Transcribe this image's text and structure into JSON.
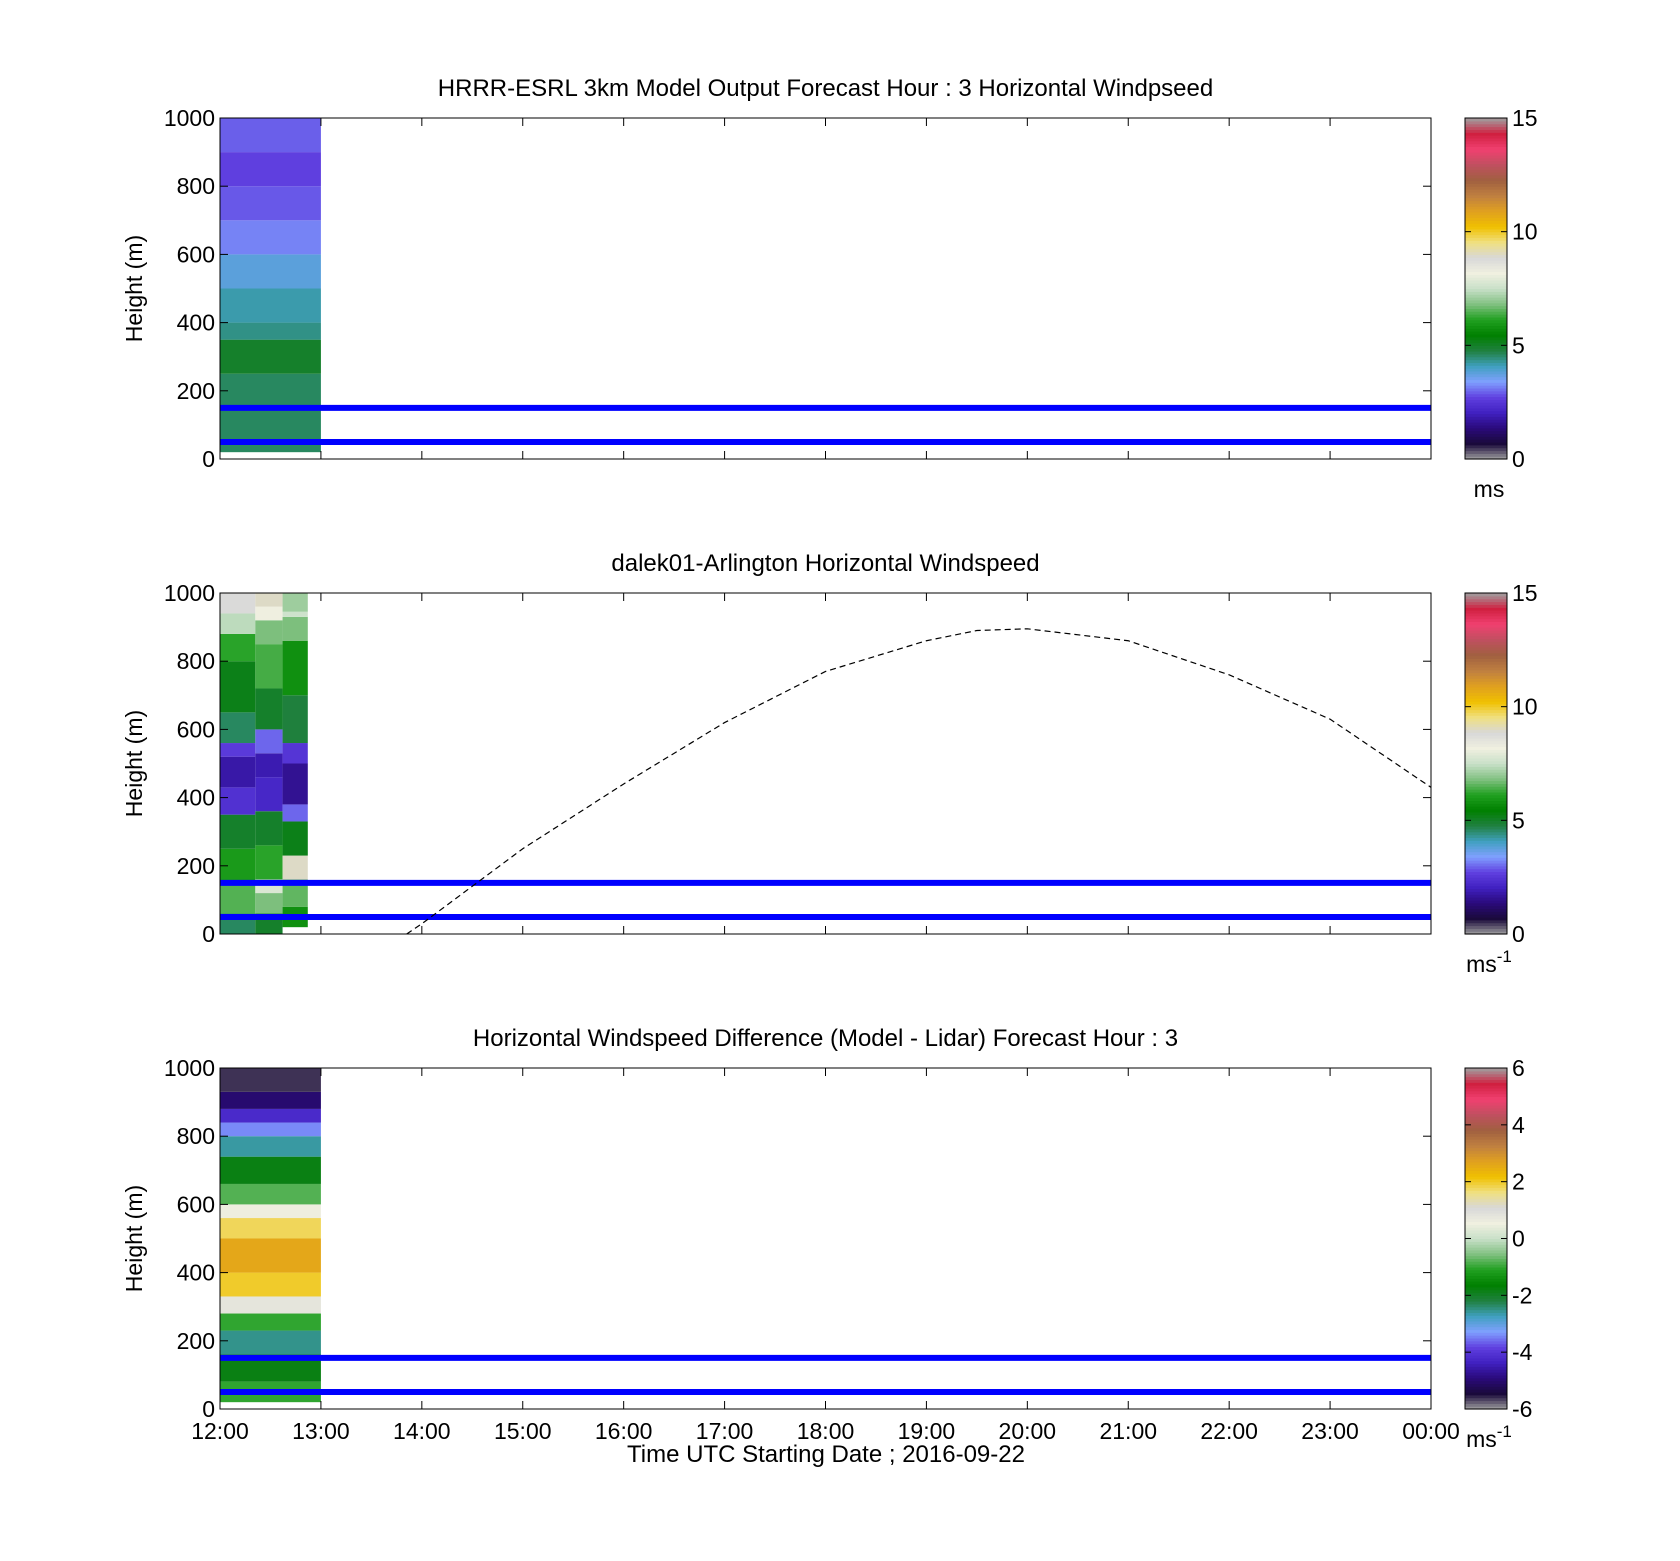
{
  "figure": {
    "xlabel": "Time UTC  Starting Date ; 2016-09-22",
    "x_ticks": [
      "12:00",
      "13:00",
      "14:00",
      "15:00",
      "16:00",
      "17:00",
      "18:00",
      "19:00",
      "20:00",
      "21:00",
      "22:00",
      "23:00",
      "00:00"
    ]
  },
  "colors": {
    "reference_lines": "#0000ff",
    "dashed_curve": "#000000"
  },
  "speed_colormap": [
    "#a0a0a0",
    "#1a0a3a",
    "#2a0a7a",
    "#4020c0",
    "#6040e0",
    "#80a0ff",
    "#40a0c0",
    "#208040",
    "#008000",
    "#20a020",
    "#80c080",
    "#c8e0c8",
    "#f0f0e0",
    "#d8d8d8",
    "#f0e080",
    "#f0c000",
    "#e0a020",
    "#c08040",
    "#a06040",
    "#c05060",
    "#f04070",
    "#d02040",
    "#a0a0a0"
  ],
  "diff_colormap": [
    "#a0a0a0",
    "#1a0a3a",
    "#2a0a7a",
    "#4020c0",
    "#6040e0",
    "#80a0ff",
    "#40a0c0",
    "#208040",
    "#008000",
    "#20a020",
    "#80c080",
    "#c8e0c8",
    "#f0f0e0",
    "#d8d8d8",
    "#f0e080",
    "#f0c000",
    "#e0a020",
    "#c08040",
    "#a06040",
    "#c05060",
    "#f04070",
    "#d02040",
    "#a0a0a0"
  ],
  "chart_data": [
    {
      "type": "heatmap",
      "title": "HRRR-ESRL 3km Model Output   Forecast Hour : 3 Horizontal Windpseed",
      "xlabel": "",
      "ylabel": "Height (m)",
      "xlim": [
        12,
        24
      ],
      "ylim": [
        0,
        1000
      ],
      "y_ticks": [
        "0",
        "200",
        "400",
        "600",
        "800",
        "1000"
      ],
      "colorbar": {
        "ticks": [
          "0",
          "5",
          "10",
          "15"
        ],
        "range": [
          0,
          15
        ],
        "unit": "ms",
        "unit_sup": ""
      },
      "columns": [
        {
          "x_start": 12.0,
          "x_end": 13.0,
          "cells": [
            {
              "y0": 20,
              "y1": 250,
              "value": 4.6
            },
            {
              "y0": 250,
              "y1": 350,
              "value": 5.0
            },
            {
              "y0": 350,
              "y1": 400,
              "value": 4.4
            },
            {
              "y0": 400,
              "y1": 500,
              "value": 4.2
            },
            {
              "y0": 500,
              "y1": 600,
              "value": 3.8
            },
            {
              "y0": 600,
              "y1": 700,
              "value": 3.2
            },
            {
              "y0": 700,
              "y1": 800,
              "value": 2.9
            },
            {
              "y0": 800,
              "y1": 900,
              "value": 2.7
            },
            {
              "y0": 900,
              "y1": 1000,
              "value": 2.95
            }
          ]
        }
      ],
      "reference_lines": [
        50,
        150
      ],
      "curve": null
    },
    {
      "type": "heatmap",
      "title": "dalek01-Arlington  Horizontal Windspeed",
      "xlabel": "",
      "ylabel": "Height (m)",
      "xlim": [
        12,
        24
      ],
      "ylim": [
        0,
        1000
      ],
      "y_ticks": [
        "0",
        "200",
        "400",
        "600",
        "800",
        "1000"
      ],
      "colorbar": {
        "ticks": [
          "0",
          "5",
          "10",
          "15"
        ],
        "range": [
          0,
          15
        ],
        "unit": "ms",
        "unit_sup": "-1"
      },
      "columns": [
        {
          "x_start": 12.0,
          "x_end": 12.35,
          "cells": [
            {
              "y0": 0,
              "y1": 60,
              "value": 4.6
            },
            {
              "y0": 60,
              "y1": 150,
              "value": 6.5
            },
            {
              "y0": 150,
              "y1": 250,
              "value": 6.0
            },
            {
              "y0": 250,
              "y1": 350,
              "value": 5.0
            },
            {
              "y0": 350,
              "y1": 430,
              "value": 2.4
            },
            {
              "y0": 430,
              "y1": 520,
              "value": 1.8
            },
            {
              "y0": 520,
              "y1": 560,
              "value": 2.6
            },
            {
              "y0": 560,
              "y1": 650,
              "value": 4.6
            },
            {
              "y0": 650,
              "y1": 800,
              "value": 5.2
            },
            {
              "y0": 800,
              "y1": 880,
              "value": 6.2
            },
            {
              "y0": 880,
              "y1": 940,
              "value": 7.4
            },
            {
              "y0": 940,
              "y1": 1000,
              "value": 8.8
            }
          ]
        },
        {
          "x_start": 12.35,
          "x_end": 12.62,
          "cells": [
            {
              "y0": 0,
              "y1": 60,
              "value": 5.0
            },
            {
              "y0": 60,
              "y1": 120,
              "value": 6.8
            },
            {
              "y0": 120,
              "y1": 160,
              "value": 7.8
            },
            {
              "y0": 160,
              "y1": 260,
              "value": 6.2
            },
            {
              "y0": 260,
              "y1": 360,
              "value": 5.0
            },
            {
              "y0": 360,
              "y1": 460,
              "value": 2.2
            },
            {
              "y0": 460,
              "y1": 530,
              "value": 1.9
            },
            {
              "y0": 530,
              "y1": 600,
              "value": 3.0
            },
            {
              "y0": 600,
              "y1": 720,
              "value": 5.0
            },
            {
              "y0": 720,
              "y1": 850,
              "value": 6.4
            },
            {
              "y0": 850,
              "y1": 920,
              "value": 6.8
            },
            {
              "y0": 920,
              "y1": 960,
              "value": 8.2
            },
            {
              "y0": 960,
              "y1": 1000,
              "value": 9.0
            }
          ]
        },
        {
          "x_start": 12.62,
          "x_end": 12.87,
          "cells": [
            {
              "y0": 20,
              "y1": 80,
              "value": 5.8
            },
            {
              "y0": 80,
              "y1": 160,
              "value": 6.6
            },
            {
              "y0": 160,
              "y1": 230,
              "value": 9.0
            },
            {
              "y0": 230,
              "y1": 330,
              "value": 5.2
            },
            {
              "y0": 330,
              "y1": 380,
              "value": 3.0
            },
            {
              "y0": 380,
              "y1": 500,
              "value": 1.6
            },
            {
              "y0": 500,
              "y1": 560,
              "value": 2.5
            },
            {
              "y0": 560,
              "y1": 700,
              "value": 4.8
            },
            {
              "y0": 700,
              "y1": 860,
              "value": 5.8
            },
            {
              "y0": 860,
              "y1": 930,
              "value": 6.8
            },
            {
              "y0": 930,
              "y1": 945,
              "value": 7.6
            },
            {
              "y0": 945,
              "y1": 1000,
              "value": 7.1
            }
          ]
        }
      ],
      "reference_lines": [
        50,
        150
      ],
      "curve": {
        "style": "dashed",
        "x": [
          13.85,
          14.0,
          15.0,
          16.0,
          17.0,
          18.0,
          19.0,
          19.5,
          20.0,
          21.0,
          22.0,
          23.0,
          24.0
        ],
        "y": [
          0,
          30,
          250,
          440,
          620,
          770,
          860,
          890,
          895,
          860,
          760,
          630,
          430
        ]
      }
    },
    {
      "type": "heatmap",
      "title": "Horizontal Windspeed Difference (Model - Lidar) Forecast Hour : 3",
      "xlabel": "Time UTC  Starting Date ; 2016-09-22",
      "ylabel": "Height (m)",
      "xlim": [
        12,
        24
      ],
      "ylim": [
        0,
        1000
      ],
      "y_ticks": [
        "0",
        "200",
        "400",
        "600",
        "800",
        "1000"
      ],
      "colorbar": {
        "ticks": [
          "-6",
          "-4",
          "-2",
          "0",
          "2",
          "4",
          "6"
        ],
        "range": [
          -6,
          6
        ],
        "unit": "ms",
        "unit_sup": "-1"
      },
      "columns": [
        {
          "x_start": 12.0,
          "x_end": 13.0,
          "cells": [
            {
              "y0": 20,
              "y1": 80,
              "value": -1.0
            },
            {
              "y0": 80,
              "y1": 160,
              "value": -1.8
            },
            {
              "y0": 160,
              "y1": 230,
              "value": -2.5
            },
            {
              "y0": 230,
              "y1": 280,
              "value": -1.0
            },
            {
              "y0": 280,
              "y1": 330,
              "value": 0.8
            },
            {
              "y0": 330,
              "y1": 400,
              "value": 2.0
            },
            {
              "y0": 400,
              "y1": 500,
              "value": 2.6
            },
            {
              "y0": 500,
              "y1": 560,
              "value": 1.8
            },
            {
              "y0": 560,
              "y1": 600,
              "value": 0.6
            },
            {
              "y0": 600,
              "y1": 660,
              "value": -0.8
            },
            {
              "y0": 660,
              "y1": 740,
              "value": -1.8
            },
            {
              "y0": 740,
              "y1": 800,
              "value": -2.6
            },
            {
              "y0": 800,
              "y1": 840,
              "value": -3.4
            },
            {
              "y0": 840,
              "y1": 880,
              "value": -4.2
            },
            {
              "y0": 880,
              "y1": 930,
              "value": -5.0
            },
            {
              "y0": 930,
              "y1": 1000,
              "value": -5.6
            }
          ]
        }
      ],
      "reference_lines": [
        50,
        150
      ],
      "curve": null
    }
  ]
}
